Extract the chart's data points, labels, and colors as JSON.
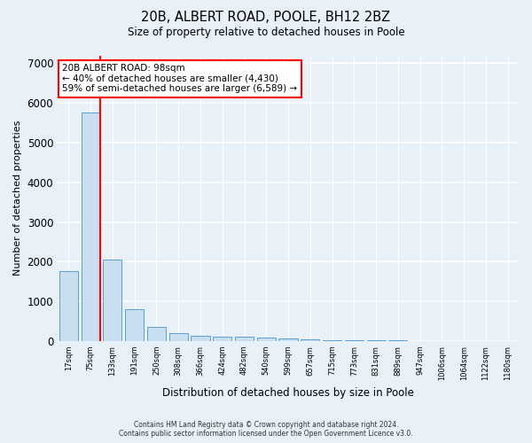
{
  "title": "20B, ALBERT ROAD, POOLE, BH12 2BZ",
  "subtitle": "Size of property relative to detached houses in Poole",
  "xlabel": "Distribution of detached houses by size in Poole",
  "ylabel": "Number of detached properties",
  "bar_color": "#c9dff0",
  "bar_edge_color": "#5a9fd4",
  "background_color": "#e8f0f8",
  "grid_color": "#ffffff",
  "categories": [
    "17sqm",
    "75sqm",
    "133sqm",
    "191sqm",
    "250sqm",
    "308sqm",
    "366sqm",
    "424sqm",
    "482sqm",
    "540sqm",
    "599sqm",
    "657sqm",
    "715sqm",
    "773sqm",
    "831sqm",
    "889sqm",
    "947sqm",
    "1006sqm",
    "1064sqm",
    "1122sqm",
    "1180sqm"
  ],
  "values": [
    1750,
    5750,
    2050,
    800,
    350,
    190,
    120,
    100,
    100,
    80,
    55,
    35,
    20,
    15,
    10,
    7,
    5,
    5,
    5,
    5,
    0
  ],
  "ylim": [
    0,
    7200
  ],
  "yticks": [
    0,
    1000,
    2000,
    3000,
    4000,
    5000,
    6000,
    7000
  ],
  "red_line_x": 1.42,
  "annotation_text": "20B ALBERT ROAD: 98sqm\n← 40% of detached houses are smaller (4,430)\n59% of semi-detached houses are larger (6,589) →",
  "footer_line1": "Contains HM Land Registry data © Crown copyright and database right 2024.",
  "footer_line2": "Contains public sector information licensed under the Open Government Licence v3.0."
}
